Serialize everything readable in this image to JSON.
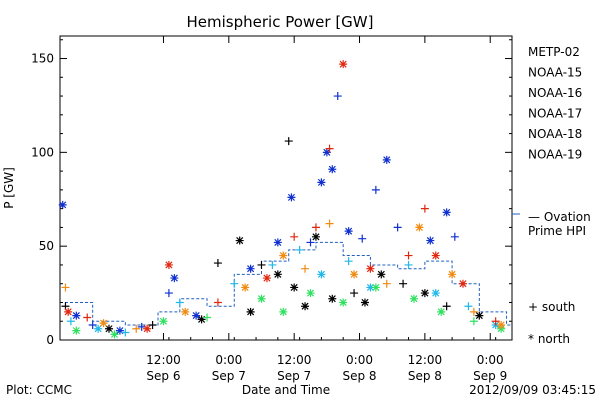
{
  "chart_data": {
    "type": "scatter",
    "title": "Hemispheric Power [GW]",
    "xlabel": "Date and Time",
    "ylabel": "P [GW]",
    "ylim": [
      0,
      162
    ],
    "xlim": [
      "2012-09-05 17:00",
      "2012-09-09 04:00"
    ],
    "y_ticks": [
      "0",
      "50",
      "100",
      "150"
    ],
    "x_ticks": [
      {
        "time": "12:00",
        "date": "Sep 6"
      },
      {
        "time": "0:00",
        "date": "Sep 7"
      },
      {
        "time": "12:00",
        "date": "Sep 7"
      },
      {
        "time": "0:00",
        "date": "Sep 8"
      },
      {
        "time": "12:00",
        "date": "Sep 8"
      },
      {
        "time": "0:00",
        "date": "Sep 9"
      }
    ],
    "footer_left": "Plot: CCMC",
    "footer_right": "2012/09/09 03:45:15",
    "grid": false,
    "legend": {
      "placement": "right",
      "satellites": [
        {
          "name": "METP-02",
          "color": "#000000"
        },
        {
          "name": "NOAA-15",
          "color": "#1030d0"
        },
        {
          "name": "NOAA-16",
          "color": "#20b8e8"
        },
        {
          "name": "NOAA-17",
          "color": "#30e060"
        },
        {
          "name": "NOAA-18",
          "color": "#f08a10"
        },
        {
          "name": "NOAA-19",
          "color": "#e02810"
        }
      ],
      "ovation_line1": "— Ovation",
      "ovation_line2": "Prime HPI",
      "ovation_color": "#2060c0",
      "south_label": "+ south",
      "north_label": "* north"
    },
    "series": [
      {
        "name": "METP-02",
        "points": [
          {
            "t": "2012-09-05 18:00",
            "p": 18,
            "h": "S"
          },
          {
            "t": "2012-09-06 02:00",
            "p": 6,
            "h": "N"
          },
          {
            "t": "2012-09-06 10:00",
            "p": 8,
            "h": "S"
          },
          {
            "t": "2012-09-06 19:00",
            "p": 11,
            "h": "N"
          },
          {
            "t": "2012-09-06 22:00",
            "p": 41,
            "h": "S"
          },
          {
            "t": "2012-09-07 02:00",
            "p": 53,
            "h": "N"
          },
          {
            "t": "2012-09-07 04:00",
            "p": 15,
            "h": "N"
          },
          {
            "t": "2012-09-07 06:00",
            "p": 40,
            "h": "S"
          },
          {
            "t": "2012-09-07 09:00",
            "p": 35,
            "h": "N"
          },
          {
            "t": "2012-09-07 11:00",
            "p": 106,
            "h": "S"
          },
          {
            "t": "2012-09-07 12:00",
            "p": 28,
            "h": "N"
          },
          {
            "t": "2012-09-07 14:00",
            "p": 18,
            "h": "N"
          },
          {
            "t": "2012-09-07 16:00",
            "p": 55,
            "h": "N"
          },
          {
            "t": "2012-09-07 19:00",
            "p": 22,
            "h": "N"
          },
          {
            "t": "2012-09-07 23:00",
            "p": 25,
            "h": "S"
          },
          {
            "t": "2012-09-08 01:00",
            "p": 20,
            "h": "N"
          },
          {
            "t": "2012-09-08 04:00",
            "p": 35,
            "h": "N"
          },
          {
            "t": "2012-09-08 08:00",
            "p": 30,
            "h": "S"
          },
          {
            "t": "2012-09-08 12:00",
            "p": 25,
            "h": "N"
          },
          {
            "t": "2012-09-08 16:00",
            "p": 18,
            "h": "S"
          },
          {
            "t": "2012-09-08 22:00",
            "p": 13,
            "h": "N"
          }
        ]
      },
      {
        "name": "NOAA-15",
        "points": [
          {
            "t": "2012-09-05 17:30",
            "p": 72,
            "h": "N"
          },
          {
            "t": "2012-09-05 20:00",
            "p": 13,
            "h": "N"
          },
          {
            "t": "2012-09-05 23:00",
            "p": 8,
            "h": "S"
          },
          {
            "t": "2012-09-06 04:00",
            "p": 5,
            "h": "N"
          },
          {
            "t": "2012-09-06 08:00",
            "p": 7,
            "h": "S"
          },
          {
            "t": "2012-09-06 13:00",
            "p": 25,
            "h": "S"
          },
          {
            "t": "2012-09-06 14:00",
            "p": 33,
            "h": "N"
          },
          {
            "t": "2012-09-06 18:00",
            "p": 13,
            "h": "N"
          },
          {
            "t": "2012-09-07 04:00",
            "p": 38,
            "h": "N"
          },
          {
            "t": "2012-09-07 09:00",
            "p": 52,
            "h": "N"
          },
          {
            "t": "2012-09-07 11:30",
            "p": 76,
            "h": "N"
          },
          {
            "t": "2012-09-07 15:00",
            "p": 52,
            "h": "S"
          },
          {
            "t": "2012-09-07 17:00",
            "p": 84,
            "h": "N"
          },
          {
            "t": "2012-09-07 18:00",
            "p": 100,
            "h": "N"
          },
          {
            "t": "2012-09-07 19:00",
            "p": 91,
            "h": "N"
          },
          {
            "t": "2012-09-07 20:00",
            "p": 130,
            "h": "S"
          },
          {
            "t": "2012-09-07 22:00",
            "p": 58,
            "h": "N"
          },
          {
            "t": "2012-09-08 00:30",
            "p": 54,
            "h": "S"
          },
          {
            "t": "2012-09-08 03:00",
            "p": 80,
            "h": "S"
          },
          {
            "t": "2012-09-08 05:00",
            "p": 96,
            "h": "N"
          },
          {
            "t": "2012-09-08 07:00",
            "p": 60,
            "h": "S"
          },
          {
            "t": "2012-09-08 13:00",
            "p": 53,
            "h": "N"
          },
          {
            "t": "2012-09-08 16:00",
            "p": 68,
            "h": "N"
          },
          {
            "t": "2012-09-08 17:30",
            "p": 55,
            "h": "S"
          }
        ]
      },
      {
        "name": "NOAA-16",
        "points": [
          {
            "t": "2012-09-05 19:00",
            "p": 10,
            "h": "S"
          },
          {
            "t": "2012-09-06 00:00",
            "p": 6,
            "h": "N"
          },
          {
            "t": "2012-09-06 05:00",
            "p": 4,
            "h": "S"
          },
          {
            "t": "2012-09-06 15:00",
            "p": 20,
            "h": "S"
          },
          {
            "t": "2012-09-07 01:00",
            "p": 30,
            "h": "S"
          },
          {
            "t": "2012-09-07 08:00",
            "p": 40,
            "h": "S"
          },
          {
            "t": "2012-09-07 13:00",
            "p": 48,
            "h": "S"
          },
          {
            "t": "2012-09-07 17:00",
            "p": 35,
            "h": "N"
          },
          {
            "t": "2012-09-07 22:00",
            "p": 42,
            "h": "S"
          },
          {
            "t": "2012-09-08 02:00",
            "p": 28,
            "h": "N"
          },
          {
            "t": "2012-09-08 09:00",
            "p": 40,
            "h": "S"
          },
          {
            "t": "2012-09-08 14:00",
            "p": 25,
            "h": "N"
          },
          {
            "t": "2012-09-08 20:00",
            "p": 18,
            "h": "S"
          },
          {
            "t": "2012-09-09 01:00",
            "p": 8,
            "h": "N"
          }
        ]
      },
      {
        "name": "NOAA-17",
        "points": [
          {
            "t": "2012-09-05 20:00",
            "p": 5,
            "h": "N"
          },
          {
            "t": "2012-09-06 03:00",
            "p": 3,
            "h": "N"
          },
          {
            "t": "2012-09-06 12:00",
            "p": 10,
            "h": "N"
          },
          {
            "t": "2012-09-06 20:00",
            "p": 12,
            "h": "S"
          },
          {
            "t": "2012-09-07 06:00",
            "p": 22,
            "h": "N"
          },
          {
            "t": "2012-09-07 10:00",
            "p": 15,
            "h": "N"
          },
          {
            "t": "2012-09-07 15:00",
            "p": 25,
            "h": "N"
          },
          {
            "t": "2012-09-07 21:00",
            "p": 20,
            "h": "N"
          },
          {
            "t": "2012-09-08 03:00",
            "p": 28,
            "h": "N"
          },
          {
            "t": "2012-09-08 10:00",
            "p": 22,
            "h": "N"
          },
          {
            "t": "2012-09-08 15:00",
            "p": 15,
            "h": "N"
          },
          {
            "t": "2012-09-08 21:00",
            "p": 10,
            "h": "S"
          },
          {
            "t": "2012-09-09 02:00",
            "p": 6,
            "h": "N"
          }
        ]
      },
      {
        "name": "NOAA-18",
        "points": [
          {
            "t": "2012-09-05 18:00",
            "p": 28,
            "h": "S"
          },
          {
            "t": "2012-09-06 01:00",
            "p": 9,
            "h": "N"
          },
          {
            "t": "2012-09-06 07:00",
            "p": 6,
            "h": "S"
          },
          {
            "t": "2012-09-06 16:00",
            "p": 15,
            "h": "N"
          },
          {
            "t": "2012-09-07 03:00",
            "p": 28,
            "h": "N"
          },
          {
            "t": "2012-09-07 10:00",
            "p": 45,
            "h": "N"
          },
          {
            "t": "2012-09-07 14:00",
            "p": 38,
            "h": "S"
          },
          {
            "t": "2012-09-07 18:30",
            "p": 62,
            "h": "S"
          },
          {
            "t": "2012-09-07 23:00",
            "p": 35,
            "h": "N"
          },
          {
            "t": "2012-09-08 05:00",
            "p": 30,
            "h": "S"
          },
          {
            "t": "2012-09-08 11:00",
            "p": 60,
            "h": "N"
          },
          {
            "t": "2012-09-08 17:00",
            "p": 35,
            "h": "N"
          },
          {
            "t": "2012-09-08 21:00",
            "p": 15,
            "h": "S"
          },
          {
            "t": "2012-09-09 02:00",
            "p": 8,
            "h": "N"
          }
        ]
      },
      {
        "name": "NOAA-19",
        "points": [
          {
            "t": "2012-09-05 18:30",
            "p": 15,
            "h": "N"
          },
          {
            "t": "2012-09-05 22:00",
            "p": 12,
            "h": "S"
          },
          {
            "t": "2012-09-06 09:00",
            "p": 6,
            "h": "N"
          },
          {
            "t": "2012-09-06 13:00",
            "p": 40,
            "h": "N"
          },
          {
            "t": "2012-09-06 22:00",
            "p": 20,
            "h": "S"
          },
          {
            "t": "2012-09-07 07:00",
            "p": 33,
            "h": "N"
          },
          {
            "t": "2012-09-07 12:00",
            "p": 55,
            "h": "S"
          },
          {
            "t": "2012-09-07 16:00",
            "p": 60,
            "h": "S"
          },
          {
            "t": "2012-09-07 18:30",
            "p": 102,
            "h": "S"
          },
          {
            "t": "2012-09-07 21:00",
            "p": 147,
            "h": "N"
          },
          {
            "t": "2012-09-08 02:00",
            "p": 38,
            "h": "N"
          },
          {
            "t": "2012-09-08 09:00",
            "p": 45,
            "h": "S"
          },
          {
            "t": "2012-09-08 12:00",
            "p": 70,
            "h": "S"
          },
          {
            "t": "2012-09-08 14:00",
            "p": 45,
            "h": "N"
          },
          {
            "t": "2012-09-08 19:00",
            "p": 30,
            "h": "N"
          },
          {
            "t": "2012-09-09 01:00",
            "p": 10,
            "h": "S"
          }
        ]
      }
    ],
    "ovation_hpi": [
      {
        "t": "2012-09-05 17:00",
        "p": 20
      },
      {
        "t": "2012-09-05 23:00",
        "p": 10
      },
      {
        "t": "2012-09-06 05:00",
        "p": 8
      },
      {
        "t": "2012-09-06 11:00",
        "p": 15
      },
      {
        "t": "2012-09-06 15:00",
        "p": 22
      },
      {
        "t": "2012-09-06 20:00",
        "p": 18
      },
      {
        "t": "2012-09-07 01:00",
        "p": 35
      },
      {
        "t": "2012-09-07 06:00",
        "p": 42
      },
      {
        "t": "2012-09-07 11:00",
        "p": 48
      },
      {
        "t": "2012-09-07 16:00",
        "p": 52
      },
      {
        "t": "2012-09-07 21:00",
        "p": 45
      },
      {
        "t": "2012-09-08 02:00",
        "p": 40
      },
      {
        "t": "2012-09-08 07:00",
        "p": 38
      },
      {
        "t": "2012-09-08 12:00",
        "p": 42
      },
      {
        "t": "2012-09-08 17:00",
        "p": 30
      },
      {
        "t": "2012-09-08 22:00",
        "p": 15
      },
      {
        "t": "2012-09-09 03:00",
        "p": 8
      }
    ]
  }
}
